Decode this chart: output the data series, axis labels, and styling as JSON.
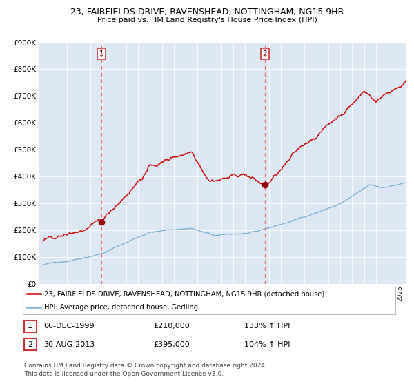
{
  "title": "23, FAIRFIELDS DRIVE, RAVENSHEAD, NOTTINGHAM, NG15 9HR",
  "subtitle": "Price paid vs. HM Land Registry's House Price Index (HPI)",
  "red_label": "23, FAIRFIELDS DRIVE, RAVENSHEAD, NOTTINGHAM, NG15 9HR (detached house)",
  "blue_label": "HPI: Average price, detached house, Gedling",
  "sale1_date": "06-DEC-1999",
  "sale1_price": "£210,000",
  "sale1_hpi": "133% ↑ HPI",
  "sale2_date": "30-AUG-2013",
  "sale2_price": "£395,000",
  "sale2_hpi": "104% ↑ HPI",
  "footer": "Contains HM Land Registry data © Crown copyright and database right 2024.\nThis data is licensed under the Open Government Licence v3.0.",
  "bg_color": "#dce9f5",
  "red_color": "#cc0000",
  "blue_color": "#7ab0d4",
  "vline_color": "#e87070",
  "marker_color": "#990000",
  "ylim": [
    0,
    900000
  ],
  "xlim_start": 1994.7,
  "xlim_end": 2025.5,
  "sale1_x": 1999.92,
  "sale2_x": 2013.66,
  "title_fontsize": 9.0,
  "subtitle_fontsize": 8.0
}
